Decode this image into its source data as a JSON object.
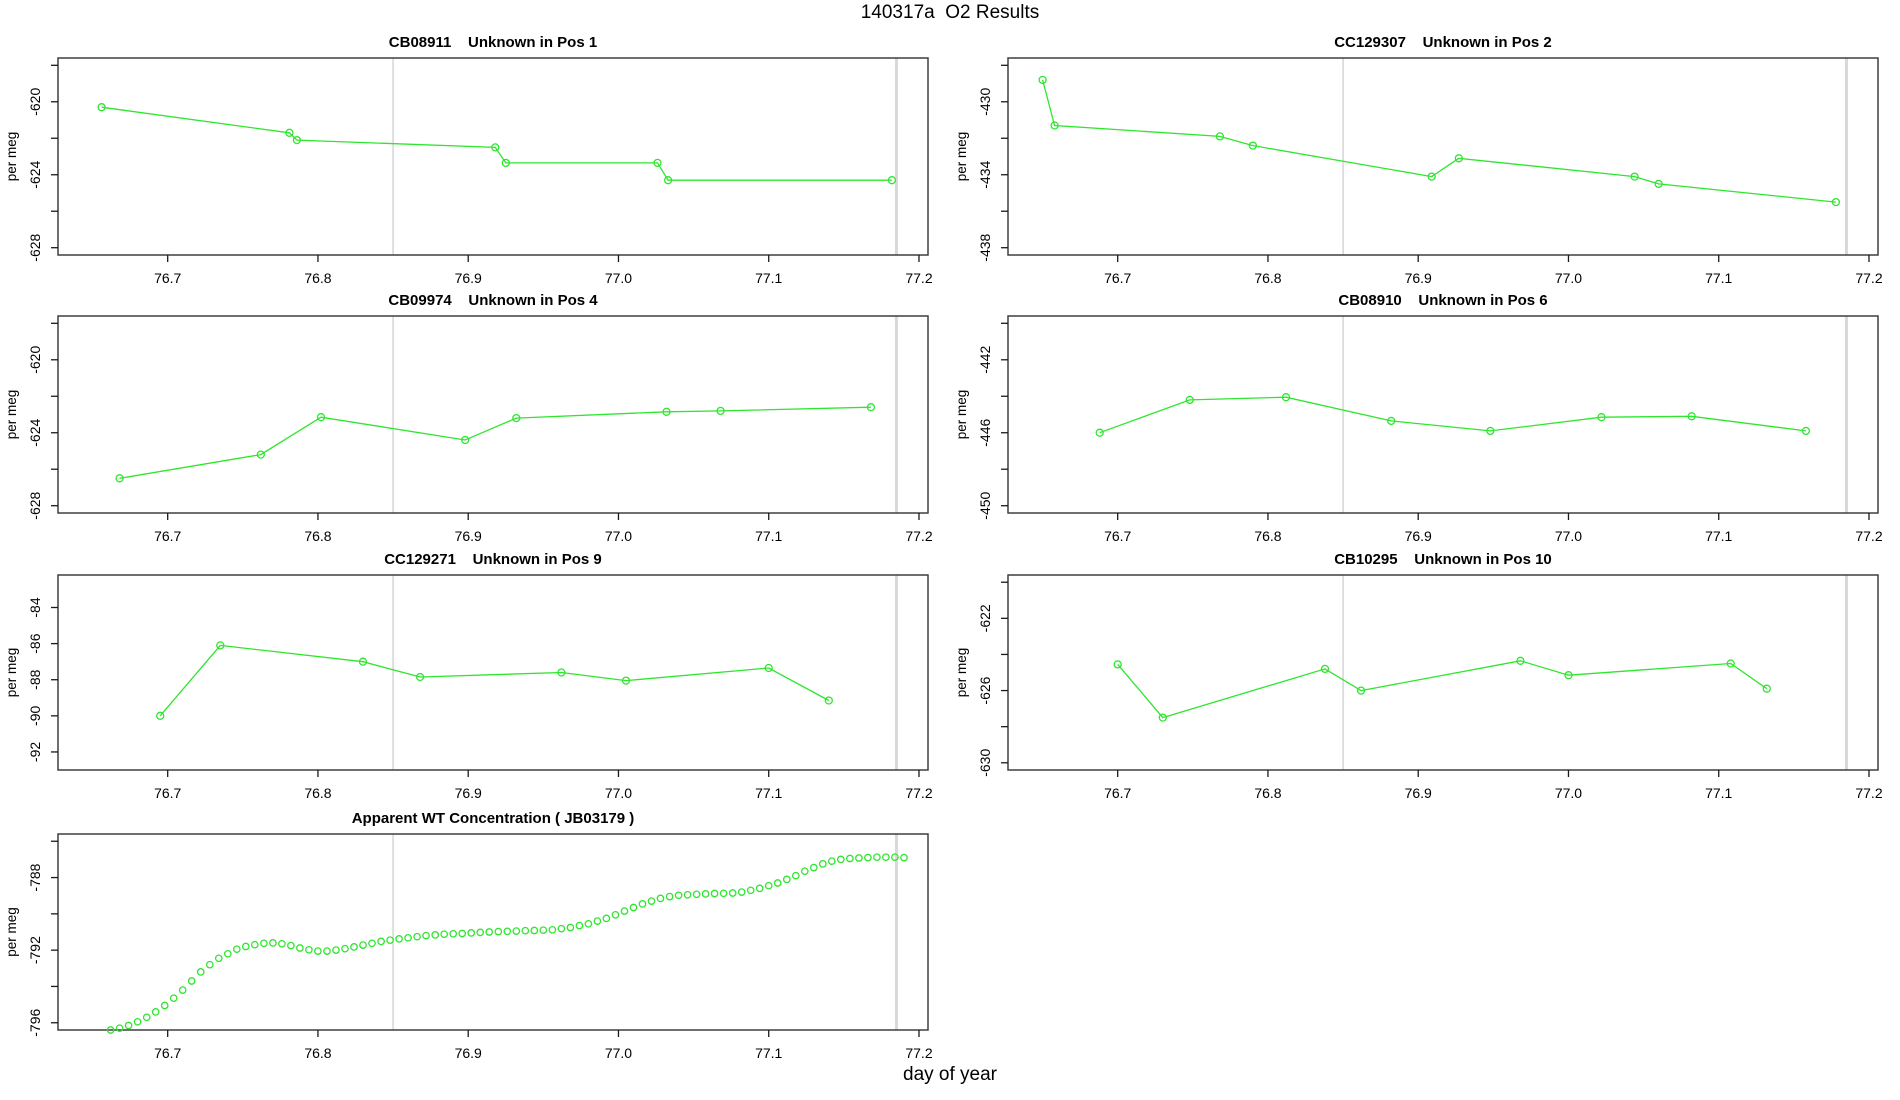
{
  "figure_title": "140317a  O2 Results",
  "x_axis_label": "day of year",
  "colors": {
    "series": "#2ee62e",
    "grid": "#d8d8d8",
    "frame": "#3f3f3f",
    "tick": "#1a1a1a",
    "text": "#000000"
  },
  "x_tick_labels": [
    "76.7",
    "76.8",
    "76.9",
    "77.0",
    "77.1",
    "77.2"
  ],
  "x_tick_values": [
    76.7,
    76.8,
    76.9,
    77.0,
    77.1,
    77.2
  ],
  "gridline_x_values": [
    76.85,
    77.185
  ],
  "xlim": [
    76.627,
    77.206
  ],
  "chart_data": [
    {
      "id": "CB08911",
      "title": "CB08911    Unknown in Pos 1",
      "type": "line",
      "row": 0,
      "col": 0,
      "ylabel": "per meg",
      "ylim": [
        -628.4,
        -617.6
      ],
      "y_ticks": [
        {
          "v": -620,
          "label": "-620"
        },
        {
          "v": -624,
          "label": "-624"
        },
        {
          "v": -628,
          "label": "-628"
        }
      ],
      "y_minor_ticks": [
        -618,
        -622,
        -626
      ],
      "points": [
        [
          76.656,
          -620.3
        ],
        [
          76.781,
          -621.7
        ],
        [
          76.786,
          -622.1
        ],
        [
          76.918,
          -622.5
        ],
        [
          76.925,
          -623.35
        ],
        [
          77.026,
          -623.35
        ],
        [
          77.033,
          -624.3
        ],
        [
          77.182,
          -624.3
        ]
      ]
    },
    {
      "id": "CC129307",
      "title": "CC129307    Unknown in Pos 2",
      "type": "line",
      "row": 0,
      "col": 1,
      "ylabel": "per meg",
      "ylim": [
        -438.4,
        -427.6
      ],
      "y_ticks": [
        {
          "v": -430,
          "label": "-430"
        },
        {
          "v": -434,
          "label": "-434"
        },
        {
          "v": -438,
          "label": "-438"
        }
      ],
      "y_minor_ticks": [
        -428,
        -432,
        -436
      ],
      "points": [
        [
          76.65,
          -428.8
        ],
        [
          76.658,
          -431.3
        ],
        [
          76.768,
          -431.9
        ],
        [
          76.79,
          -432.4
        ],
        [
          76.909,
          -434.1
        ],
        [
          76.927,
          -433.1
        ],
        [
          77.044,
          -434.1
        ],
        [
          77.06,
          -434.5
        ],
        [
          77.178,
          -435.5
        ]
      ]
    },
    {
      "id": "CB09974",
      "title": "CB09974    Unknown in Pos 4",
      "type": "line",
      "row": 1,
      "col": 0,
      "ylabel": "per meg",
      "ylim": [
        -628.4,
        -617.6
      ],
      "y_ticks": [
        {
          "v": -620,
          "label": "-620"
        },
        {
          "v": -624,
          "label": "-624"
        },
        {
          "v": -628,
          "label": "-628"
        }
      ],
      "y_minor_ticks": [
        -618,
        -622,
        -626
      ],
      "points": [
        [
          76.668,
          -626.5
        ],
        [
          76.762,
          -625.2
        ],
        [
          76.802,
          -623.15
        ],
        [
          76.898,
          -624.4
        ],
        [
          76.932,
          -623.2
        ],
        [
          77.032,
          -622.85
        ],
        [
          77.068,
          -622.8
        ],
        [
          77.168,
          -622.6
        ]
      ]
    },
    {
      "id": "CB08910",
      "title": "CB08910    Unknown in Pos 6",
      "type": "line",
      "row": 1,
      "col": 1,
      "ylabel": "per meg",
      "ylim": [
        -450.4,
        -439.6
      ],
      "y_ticks": [
        {
          "v": -442,
          "label": "-442"
        },
        {
          "v": -446,
          "label": "-446"
        },
        {
          "v": -450,
          "label": "-450"
        }
      ],
      "y_minor_ticks": [
        -440,
        -444,
        -448
      ],
      "points": [
        [
          76.688,
          -446.0
        ],
        [
          76.748,
          -444.2
        ],
        [
          76.812,
          -444.05
        ],
        [
          76.882,
          -445.35
        ],
        [
          76.948,
          -445.9
        ],
        [
          77.022,
          -445.15
        ],
        [
          77.082,
          -445.1
        ],
        [
          77.158,
          -445.9
        ]
      ]
    },
    {
      "id": "CC129271",
      "title": "CC129271    Unknown in Pos 9",
      "type": "line",
      "row": 2,
      "col": 0,
      "ylabel": "per meg",
      "ylim": [
        -93.0,
        -82.2
      ],
      "y_ticks": [
        {
          "v": -84,
          "label": "-84"
        },
        {
          "v": -86,
          "label": "-86"
        },
        {
          "v": -88,
          "label": "-88"
        },
        {
          "v": -90,
          "label": "-90"
        },
        {
          "v": -92,
          "label": "-92"
        }
      ],
      "y_minor_ticks": [],
      "points": [
        [
          76.695,
          -90.0
        ],
        [
          76.735,
          -86.1
        ],
        [
          76.83,
          -87.0
        ],
        [
          76.868,
          -87.85
        ],
        [
          76.962,
          -87.6
        ],
        [
          77.005,
          -88.05
        ],
        [
          77.1,
          -87.35
        ],
        [
          77.14,
          -89.15
        ]
      ]
    },
    {
      "id": "CB10295",
      "title": "CB10295    Unknown in Pos 10",
      "type": "line",
      "row": 2,
      "col": 1,
      "ylabel": "per meg",
      "ylim": [
        -630.4,
        -619.6
      ],
      "y_ticks": [
        {
          "v": -622,
          "label": "-622"
        },
        {
          "v": -626,
          "label": "-626"
        },
        {
          "v": -630,
          "label": "-630"
        }
      ],
      "y_minor_ticks": [
        -620,
        -624,
        -628
      ],
      "points": [
        [
          76.7,
          -624.55
        ],
        [
          76.73,
          -627.5
        ],
        [
          76.838,
          -624.8
        ],
        [
          76.862,
          -626.0
        ],
        [
          76.968,
          -624.35
        ],
        [
          77.0,
          -625.15
        ],
        [
          77.108,
          -624.5
        ],
        [
          77.132,
          -625.9
        ]
      ]
    },
    {
      "id": "JB03179",
      "title": "Apparent WT Concentration ( JB03179 )",
      "type": "scatter",
      "row": 3,
      "col": 0,
      "ylabel": "per meg",
      "ylim": [
        -796.4,
        -785.6
      ],
      "y_ticks": [
        {
          "v": -788,
          "label": "-788"
        },
        {
          "v": -792,
          "label": "-792"
        },
        {
          "v": -796,
          "label": "-796"
        }
      ],
      "y_minor_ticks": [
        -786,
        -790,
        -794
      ],
      "points": [
        [
          76.662,
          -796.4
        ],
        [
          76.668,
          -796.3
        ],
        [
          76.674,
          -796.15
        ],
        [
          76.68,
          -795.95
        ],
        [
          76.686,
          -795.7
        ],
        [
          76.692,
          -795.4
        ],
        [
          76.698,
          -795.05
        ],
        [
          76.704,
          -794.65
        ],
        [
          76.71,
          -794.2
        ],
        [
          76.716,
          -793.7
        ],
        [
          76.722,
          -793.2
        ],
        [
          76.728,
          -792.8
        ],
        [
          76.734,
          -792.45
        ],
        [
          76.74,
          -792.2
        ],
        [
          76.746,
          -791.95
        ],
        [
          76.752,
          -791.8
        ],
        [
          76.758,
          -791.7
        ],
        [
          76.764,
          -791.62
        ],
        [
          76.77,
          -791.6
        ],
        [
          76.776,
          -791.65
        ],
        [
          76.782,
          -791.75
        ],
        [
          76.788,
          -791.88
        ],
        [
          76.794,
          -791.98
        ],
        [
          76.8,
          -792.05
        ],
        [
          76.806,
          -792.05
        ],
        [
          76.812,
          -792.0
        ],
        [
          76.818,
          -791.92
        ],
        [
          76.824,
          -791.82
        ],
        [
          76.83,
          -791.72
        ],
        [
          76.836,
          -791.62
        ],
        [
          76.842,
          -791.52
        ],
        [
          76.848,
          -791.45
        ],
        [
          76.854,
          -791.38
        ],
        [
          76.86,
          -791.32
        ],
        [
          76.866,
          -791.26
        ],
        [
          76.872,
          -791.2
        ],
        [
          76.878,
          -791.16
        ],
        [
          76.884,
          -791.12
        ],
        [
          76.89,
          -791.1
        ],
        [
          76.896,
          -791.08
        ],
        [
          76.902,
          -791.05
        ],
        [
          76.908,
          -791.02
        ],
        [
          76.914,
          -791.0
        ],
        [
          76.92,
          -790.98
        ],
        [
          76.926,
          -790.96
        ],
        [
          76.932,
          -790.95
        ],
        [
          76.938,
          -790.93
        ],
        [
          76.944,
          -790.92
        ],
        [
          76.95,
          -790.9
        ],
        [
          76.956,
          -790.88
        ],
        [
          76.962,
          -790.82
        ],
        [
          76.968,
          -790.75
        ],
        [
          76.974,
          -790.65
        ],
        [
          76.98,
          -790.55
        ],
        [
          76.986,
          -790.4
        ],
        [
          76.992,
          -790.25
        ],
        [
          76.998,
          -790.05
        ],
        [
          77.004,
          -789.85
        ],
        [
          77.01,
          -789.65
        ],
        [
          77.016,
          -789.45
        ],
        [
          77.022,
          -789.3
        ],
        [
          77.028,
          -789.15
        ],
        [
          77.034,
          -789.05
        ],
        [
          77.04,
          -788.98
        ],
        [
          77.046,
          -788.95
        ],
        [
          77.052,
          -788.92
        ],
        [
          77.058,
          -788.9
        ],
        [
          77.064,
          -788.88
        ],
        [
          77.07,
          -788.87
        ],
        [
          77.076,
          -788.85
        ],
        [
          77.082,
          -788.8
        ],
        [
          77.088,
          -788.7
        ],
        [
          77.094,
          -788.6
        ],
        [
          77.1,
          -788.45
        ],
        [
          77.106,
          -788.3
        ],
        [
          77.112,
          -788.1
        ],
        [
          77.118,
          -787.9
        ],
        [
          77.124,
          -787.65
        ],
        [
          77.13,
          -787.45
        ],
        [
          77.136,
          -787.25
        ],
        [
          77.142,
          -787.1
        ],
        [
          77.148,
          -787.0
        ],
        [
          77.154,
          -786.95
        ],
        [
          77.16,
          -786.92
        ],
        [
          77.166,
          -786.9
        ],
        [
          77.172,
          -786.88
        ],
        [
          77.178,
          -786.88
        ],
        [
          77.184,
          -786.88
        ],
        [
          77.19,
          -786.9
        ]
      ]
    }
  ]
}
